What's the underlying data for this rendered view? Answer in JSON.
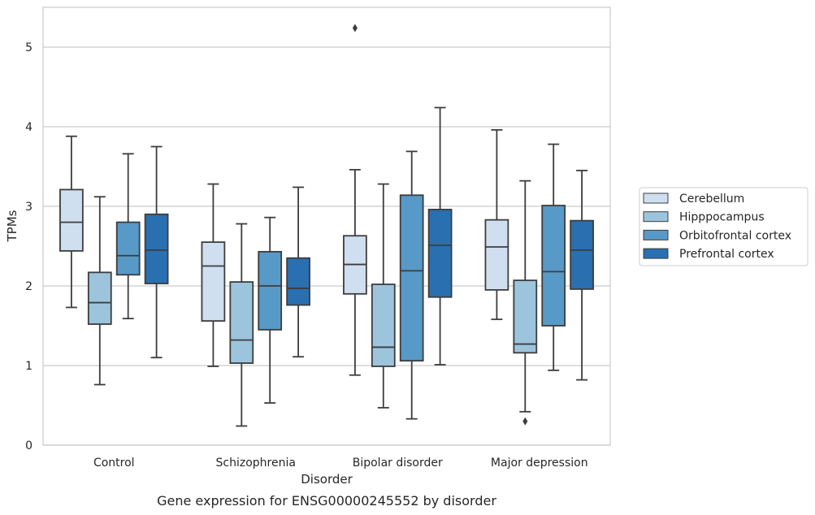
{
  "chart_data": {
    "type": "boxplot",
    "title": "Gene expression for ENSG00000245552 by disorder",
    "xlabel": "Disorder",
    "ylabel": "TPMs",
    "ylim": [
      0,
      5.5
    ],
    "yticks": [
      0,
      1,
      2,
      3,
      4,
      5
    ],
    "grid": true,
    "legend_position": "right",
    "categories": [
      "Control",
      "Schizophrenia",
      "Bipolar disorder",
      "Major depression"
    ],
    "series": [
      {
        "name": "Cerebellum",
        "color": "#cfdff0",
        "boxes": [
          {
            "whislo": 1.73,
            "q1": 2.44,
            "med": 2.8,
            "q3": 3.21,
            "whishi": 3.88,
            "fliers": []
          },
          {
            "whislo": 0.99,
            "q1": 1.56,
            "med": 2.25,
            "q3": 2.55,
            "whishi": 3.28,
            "fliers": []
          },
          {
            "whislo": 0.88,
            "q1": 1.9,
            "med": 2.27,
            "q3": 2.63,
            "whishi": 3.46,
            "fliers": [
              5.24
            ]
          },
          {
            "whislo": 1.58,
            "q1": 1.95,
            "med": 2.49,
            "q3": 2.83,
            "whishi": 3.96,
            "fliers": []
          }
        ]
      },
      {
        "name": "Hipppocampus",
        "color": "#9cc4dd",
        "boxes": [
          {
            "whislo": 0.76,
            "q1": 1.52,
            "med": 1.79,
            "q3": 2.17,
            "whishi": 3.12,
            "fliers": []
          },
          {
            "whislo": 0.24,
            "q1": 1.03,
            "med": 1.32,
            "q3": 2.05,
            "whishi": 2.78,
            "fliers": []
          },
          {
            "whislo": 0.47,
            "q1": 0.99,
            "med": 1.23,
            "q3": 2.02,
            "whishi": 3.28,
            "fliers": []
          },
          {
            "whislo": 0.42,
            "q1": 1.16,
            "med": 1.27,
            "q3": 2.07,
            "whishi": 3.32,
            "fliers": [
              0.3
            ]
          }
        ]
      },
      {
        "name": "Orbitofrontal cortex",
        "color": "#5799c7",
        "boxes": [
          {
            "whislo": 1.59,
            "q1": 2.14,
            "med": 2.38,
            "q3": 2.8,
            "whishi": 3.66,
            "fliers": []
          },
          {
            "whislo": 0.53,
            "q1": 1.45,
            "med": 2.0,
            "q3": 2.43,
            "whishi": 2.86,
            "fliers": []
          },
          {
            "whislo": 0.33,
            "q1": 1.06,
            "med": 2.19,
            "q3": 3.14,
            "whishi": 3.69,
            "fliers": []
          },
          {
            "whislo": 0.94,
            "q1": 1.5,
            "med": 2.18,
            "q3": 3.01,
            "whishi": 3.78,
            "fliers": []
          }
        ]
      },
      {
        "name": "Prefrontal cortex",
        "color": "#2a6fb0",
        "boxes": [
          {
            "whislo": 1.1,
            "q1": 2.03,
            "med": 2.45,
            "q3": 2.9,
            "whishi": 3.75,
            "fliers": []
          },
          {
            "whislo": 1.11,
            "q1": 1.76,
            "med": 1.97,
            "q3": 2.35,
            "whishi": 3.24,
            "fliers": []
          },
          {
            "whislo": 1.01,
            "q1": 1.86,
            "med": 2.51,
            "q3": 2.96,
            "whishi": 4.24,
            "fliers": []
          },
          {
            "whislo": 0.82,
            "q1": 1.96,
            "med": 2.45,
            "q3": 2.82,
            "whishi": 3.45,
            "fliers": []
          }
        ]
      }
    ]
  }
}
